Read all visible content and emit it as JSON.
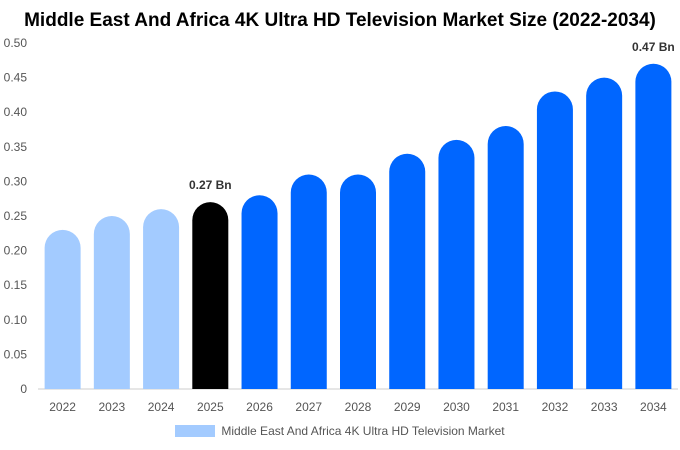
{
  "chart_data": {
    "type": "bar",
    "title": "Middle East And Africa 4K Ultra HD Television Market Size (2022-2034)",
    "categories": [
      "2022",
      "2023",
      "2024",
      "2025",
      "2026",
      "2027",
      "2028",
      "2029",
      "2030",
      "2031",
      "2032",
      "2033",
      "2034"
    ],
    "series": [
      {
        "name": "Middle East And Africa 4K Ultra HD Television Market",
        "values": [
          0.23,
          0.25,
          0.26,
          0.27,
          0.28,
          0.31,
          0.31,
          0.34,
          0.36,
          0.38,
          0.43,
          0.45,
          0.47
        ]
      }
    ],
    "bar_colors": [
      "#a3cbff",
      "#a3cbff",
      "#a3cbff",
      "#000000",
      "#0066ff",
      "#0066ff",
      "#0066ff",
      "#0066ff",
      "#0066ff",
      "#0066ff",
      "#0066ff",
      "#0066ff",
      "#0066ff"
    ],
    "ylim": [
      0,
      0.5
    ],
    "yticks": [
      "0",
      "0.05",
      "0.10",
      "0.15",
      "0.20",
      "0.25",
      "0.30",
      "0.35",
      "0.40",
      "0.45",
      "0.50"
    ],
    "annotations": [
      {
        "category": "2025",
        "text": "0.27 Bn"
      },
      {
        "category": "2034",
        "text": "0.47 Bn"
      }
    ],
    "legend_color": "#a3cbff",
    "grid": false,
    "legend_position": "bottom"
  }
}
